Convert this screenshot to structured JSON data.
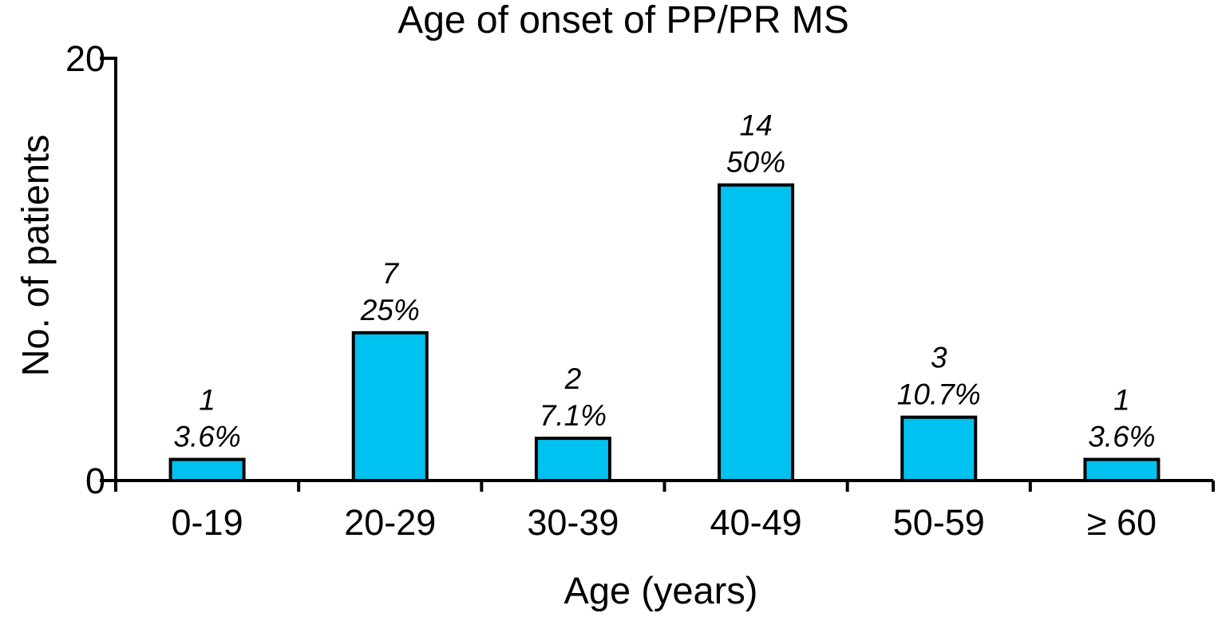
{
  "chart_data": {
    "type": "bar",
    "title": "Age of onset of PP/PR MS",
    "xlabel": "Age (years)",
    "ylabel": "No. of patients",
    "categories": [
      "0-19",
      "20-29",
      "30-39",
      "40-49",
      "50-59",
      "≥ 60"
    ],
    "values": [
      1,
      7,
      2,
      14,
      3,
      1
    ],
    "percent_labels": [
      "3.6%",
      "25%",
      "7.1%",
      "50%",
      "10.7%",
      "3.6%"
    ],
    "ylim": [
      0,
      20
    ],
    "yticks": [
      0,
      20
    ],
    "grid": false,
    "legend": "none",
    "bar_fill_color": "#00C2F0",
    "bar_outline_color": "#000000",
    "axis_color": "#000000"
  }
}
